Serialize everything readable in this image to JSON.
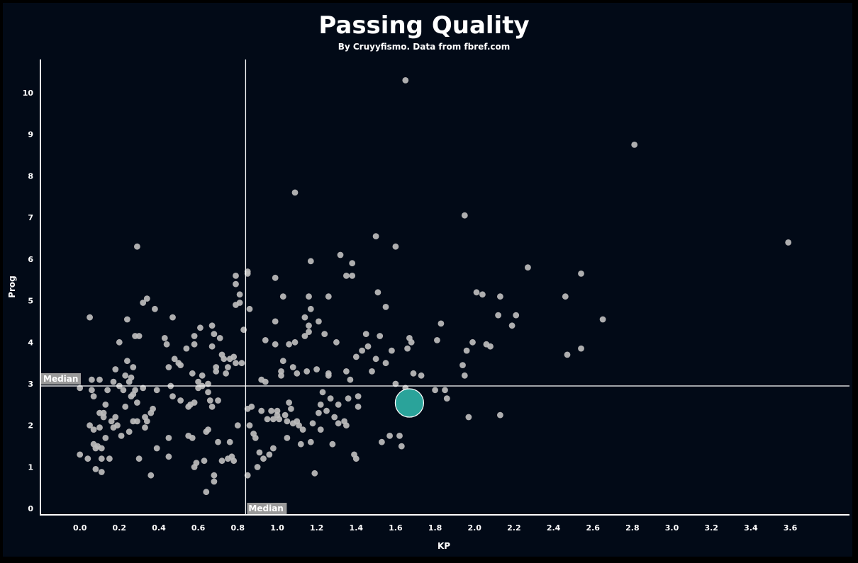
{
  "chart_data": {
    "type": "scatter",
    "title": "Passing Quality",
    "subtitle": "By Cruyyfismo. Data from fbref.com",
    "xlabel": "KP",
    "ylabel": "Prog",
    "xlim": [
      -0.2,
      3.9
    ],
    "ylim": [
      -0.15,
      10.8
    ],
    "xticks": [
      "0.0",
      "0.2",
      "0.4",
      "0.6",
      "0.8",
      "1.0",
      "1.2",
      "1.4",
      "1.6",
      "1.8",
      "2.0",
      "2.2",
      "2.4",
      "2.6",
      "2.8",
      "3.0",
      "3.2",
      "3.4",
      "3.6"
    ],
    "yticks": [
      "0",
      "1",
      "2",
      "3",
      "4",
      "5",
      "6",
      "7",
      "8",
      "9",
      "10"
    ],
    "grid": false,
    "median_x": 0.84,
    "median_y": 2.95,
    "median_label": "Median",
    "colors": {
      "background": "#020a17",
      "frame": "#000000",
      "point": "#bdbdbd",
      "highlight": "#2aa39a",
      "axis": "#ffffff",
      "median_box": "#9a9a9a"
    },
    "highlight": {
      "x": 1.67,
      "y": 2.54
    },
    "points": [
      [
        0.0,
        2.9
      ],
      [
        0.0,
        1.3
      ],
      [
        0.05,
        4.6
      ],
      [
        0.04,
        1.2
      ],
      [
        0.05,
        2.0
      ],
      [
        0.06,
        3.1
      ],
      [
        0.06,
        2.85
      ],
      [
        0.07,
        2.7
      ],
      [
        0.07,
        1.9
      ],
      [
        0.07,
        1.55
      ],
      [
        0.08,
        1.45
      ],
      [
        0.08,
        0.95
      ],
      [
        0.09,
        1.5
      ],
      [
        0.1,
        3.1
      ],
      [
        0.1,
        2.3
      ],
      [
        0.1,
        1.95
      ],
      [
        0.11,
        1.45
      ],
      [
        0.11,
        1.2
      ],
      [
        0.11,
        0.88
      ],
      [
        0.12,
        2.2
      ],
      [
        0.12,
        2.3
      ],
      [
        0.13,
        2.5
      ],
      [
        0.13,
        1.7
      ],
      [
        0.14,
        2.85
      ],
      [
        0.15,
        1.2
      ],
      [
        0.16,
        2.1
      ],
      [
        0.17,
        1.95
      ],
      [
        0.17,
        3.05
      ],
      [
        0.18,
        3.35
      ],
      [
        0.18,
        2.2
      ],
      [
        0.19,
        2.0
      ],
      [
        0.2,
        4.0
      ],
      [
        0.2,
        2.95
      ],
      [
        0.21,
        1.75
      ],
      [
        0.22,
        2.85
      ],
      [
        0.23,
        3.2
      ],
      [
        0.23,
        2.45
      ],
      [
        0.24,
        3.55
      ],
      [
        0.24,
        4.55
      ],
      [
        0.25,
        1.85
      ],
      [
        0.25,
        3.05
      ],
      [
        0.26,
        2.7
      ],
      [
        0.26,
        3.15
      ],
      [
        0.27,
        2.1
      ],
      [
        0.27,
        2.75
      ],
      [
        0.27,
        3.4
      ],
      [
        0.28,
        2.85
      ],
      [
        0.28,
        4.15
      ],
      [
        0.29,
        6.3
      ],
      [
        0.29,
        2.55
      ],
      [
        0.29,
        2.1
      ],
      [
        0.3,
        1.2
      ],
      [
        0.3,
        4.15
      ],
      [
        0.32,
        4.95
      ],
      [
        0.32,
        2.9
      ],
      [
        0.33,
        1.95
      ],
      [
        0.33,
        2.2
      ],
      [
        0.34,
        2.1
      ],
      [
        0.34,
        5.05
      ],
      [
        0.36,
        0.8
      ],
      [
        0.36,
        2.3
      ],
      [
        0.37,
        2.4
      ],
      [
        0.38,
        4.8
      ],
      [
        0.39,
        1.45
      ],
      [
        0.39,
        2.85
      ],
      [
        0.43,
        4.1
      ],
      [
        0.44,
        3.95
      ],
      [
        0.45,
        3.4
      ],
      [
        0.45,
        1.25
      ],
      [
        0.45,
        1.7
      ],
      [
        0.46,
        2.95
      ],
      [
        0.47,
        4.6
      ],
      [
        0.47,
        2.7
      ],
      [
        0.48,
        3.6
      ],
      [
        0.5,
        3.5
      ],
      [
        0.51,
        2.6
      ],
      [
        0.51,
        3.45
      ],
      [
        0.54,
        3.85
      ],
      [
        0.55,
        2.45
      ],
      [
        0.55,
        1.75
      ],
      [
        0.56,
        2.5
      ],
      [
        0.57,
        1.7
      ],
      [
        0.57,
        3.25
      ],
      [
        0.58,
        4.15
      ],
      [
        0.58,
        2.55
      ],
      [
        0.58,
        3.95
      ],
      [
        0.58,
        1.0
      ],
      [
        0.59,
        1.1
      ],
      [
        0.6,
        2.9
      ],
      [
        0.6,
        3.05
      ],
      [
        0.61,
        4.35
      ],
      [
        0.62,
        3.2
      ],
      [
        0.62,
        2.95
      ],
      [
        0.63,
        1.15
      ],
      [
        0.64,
        0.4
      ],
      [
        0.64,
        1.85
      ],
      [
        0.65,
        2.8
      ],
      [
        0.65,
        1.9
      ],
      [
        0.65,
        3.0
      ],
      [
        0.66,
        2.6
      ],
      [
        0.67,
        2.45
      ],
      [
        0.67,
        4.4
      ],
      [
        0.67,
        3.9
      ],
      [
        0.68,
        4.2
      ],
      [
        0.68,
        0.8
      ],
      [
        0.68,
        0.65
      ],
      [
        0.69,
        3.4
      ],
      [
        0.69,
        3.3
      ],
      [
        0.7,
        2.6
      ],
      [
        0.7,
        1.6
      ],
      [
        0.71,
        4.1
      ],
      [
        0.72,
        3.7
      ],
      [
        0.72,
        1.15
      ],
      [
        0.73,
        3.6
      ],
      [
        0.74,
        3.25
      ],
      [
        0.75,
        3.4
      ],
      [
        0.75,
        1.2
      ],
      [
        0.76,
        3.6
      ],
      [
        0.76,
        1.6
      ],
      [
        0.77,
        1.25
      ],
      [
        0.78,
        1.15
      ],
      [
        0.78,
        3.65
      ],
      [
        0.79,
        5.6
      ],
      [
        0.79,
        5.4
      ],
      [
        0.79,
        4.9
      ],
      [
        0.79,
        3.5
      ],
      [
        0.8,
        2.0
      ],
      [
        0.81,
        5.15
      ],
      [
        0.81,
        4.95
      ],
      [
        0.82,
        3.5
      ],
      [
        0.83,
        4.3
      ],
      [
        0.85,
        5.7
      ],
      [
        0.85,
        5.65
      ],
      [
        0.85,
        2.4
      ],
      [
        0.85,
        0.8
      ],
      [
        0.86,
        2.0
      ],
      [
        0.86,
        4.8
      ],
      [
        0.87,
        2.45
      ],
      [
        0.88,
        1.8
      ],
      [
        0.89,
        1.7
      ],
      [
        0.9,
        1.0
      ],
      [
        0.91,
        1.35
      ],
      [
        0.92,
        3.1
      ],
      [
        0.92,
        2.35
      ],
      [
        0.93,
        1.2
      ],
      [
        0.94,
        3.05
      ],
      [
        0.94,
        4.05
      ],
      [
        0.95,
        2.15
      ],
      [
        0.96,
        1.3
      ],
      [
        0.97,
        2.35
      ],
      [
        0.98,
        2.15
      ],
      [
        0.98,
        1.45
      ],
      [
        0.99,
        4.5
      ],
      [
        0.99,
        3.95
      ],
      [
        0.99,
        5.55
      ],
      [
        1.0,
        2.35
      ],
      [
        1.0,
        2.25
      ],
      [
        1.01,
        2.15
      ],
      [
        1.02,
        3.3
      ],
      [
        1.02,
        3.2
      ],
      [
        1.03,
        5.1
      ],
      [
        1.03,
        3.55
      ],
      [
        1.04,
        2.25
      ],
      [
        1.05,
        2.1
      ],
      [
        1.05,
        1.7
      ],
      [
        1.06,
        3.95
      ],
      [
        1.06,
        2.55
      ],
      [
        1.07,
        2.4
      ],
      [
        1.08,
        2.05
      ],
      [
        1.08,
        3.4
      ],
      [
        1.09,
        4.0
      ],
      [
        1.09,
        7.6
      ],
      [
        1.1,
        3.25
      ],
      [
        1.1,
        2.1
      ],
      [
        1.11,
        2.0
      ],
      [
        1.12,
        1.55
      ],
      [
        1.13,
        1.9
      ],
      [
        1.14,
        4.6
      ],
      [
        1.14,
        4.15
      ],
      [
        1.15,
        3.3
      ],
      [
        1.16,
        4.25
      ],
      [
        1.16,
        5.1
      ],
      [
        1.16,
        4.4
      ],
      [
        1.17,
        5.95
      ],
      [
        1.17,
        1.6
      ],
      [
        1.17,
        4.8
      ],
      [
        1.18,
        2.05
      ],
      [
        1.19,
        0.85
      ],
      [
        1.2,
        3.35
      ],
      [
        1.21,
        4.5
      ],
      [
        1.21,
        2.3
      ],
      [
        1.22,
        2.5
      ],
      [
        1.22,
        1.9
      ],
      [
        1.23,
        2.8
      ],
      [
        1.24,
        4.2
      ],
      [
        1.25,
        2.35
      ],
      [
        1.26,
        3.2
      ],
      [
        1.26,
        5.1
      ],
      [
        1.26,
        3.25
      ],
      [
        1.27,
        2.65
      ],
      [
        1.28,
        1.55
      ],
      [
        1.29,
        2.2
      ],
      [
        1.3,
        4.0
      ],
      [
        1.31,
        2.5
      ],
      [
        1.31,
        2.05
      ],
      [
        1.32,
        6.1
      ],
      [
        1.34,
        2.1
      ],
      [
        1.35,
        3.3
      ],
      [
        1.35,
        5.6
      ],
      [
        1.35,
        2.0
      ],
      [
        1.36,
        2.65
      ],
      [
        1.37,
        3.1
      ],
      [
        1.38,
        5.9
      ],
      [
        1.38,
        5.6
      ],
      [
        1.39,
        1.3
      ],
      [
        1.4,
        1.2
      ],
      [
        1.4,
        3.65
      ],
      [
        1.41,
        2.7
      ],
      [
        1.41,
        2.45
      ],
      [
        1.43,
        3.8
      ],
      [
        1.45,
        4.2
      ],
      [
        1.46,
        3.9
      ],
      [
        1.48,
        3.3
      ],
      [
        1.5,
        6.55
      ],
      [
        1.5,
        3.6
      ],
      [
        1.51,
        5.2
      ],
      [
        1.52,
        4.15
      ],
      [
        1.53,
        1.6
      ],
      [
        1.55,
        4.85
      ],
      [
        1.55,
        3.5
      ],
      [
        1.57,
        1.75
      ],
      [
        1.58,
        3.8
      ],
      [
        1.6,
        6.3
      ],
      [
        1.6,
        3.0
      ],
      [
        1.62,
        1.75
      ],
      [
        1.63,
        1.5
      ],
      [
        1.65,
        2.9
      ],
      [
        1.66,
        3.85
      ],
      [
        1.67,
        4.1
      ],
      [
        1.68,
        4.0
      ],
      [
        1.69,
        3.25
      ],
      [
        1.73,
        3.2
      ],
      [
        1.8,
        2.85
      ],
      [
        1.81,
        4.05
      ],
      [
        1.83,
        4.45
      ],
      [
        1.85,
        2.85
      ],
      [
        1.86,
        2.65
      ],
      [
        1.94,
        3.45
      ],
      [
        1.95,
        3.2
      ],
      [
        1.95,
        7.05
      ],
      [
        1.96,
        3.8
      ],
      [
        1.97,
        2.2
      ],
      [
        1.99,
        4.0
      ],
      [
        2.01,
        5.2
      ],
      [
        2.04,
        5.15
      ],
      [
        2.06,
        3.95
      ],
      [
        2.08,
        3.9
      ],
      [
        2.12,
        4.65
      ],
      [
        2.13,
        5.1
      ],
      [
        2.13,
        2.25
      ],
      [
        2.19,
        4.4
      ],
      [
        2.21,
        4.65
      ],
      [
        2.27,
        5.8
      ],
      [
        2.46,
        5.1
      ],
      [
        2.47,
        3.7
      ],
      [
        2.54,
        5.65
      ],
      [
        2.54,
        3.85
      ],
      [
        2.65,
        4.55
      ],
      [
        2.81,
        8.75
      ],
      [
        1.65,
        10.3
      ],
      [
        3.59,
        6.4
      ]
    ]
  }
}
